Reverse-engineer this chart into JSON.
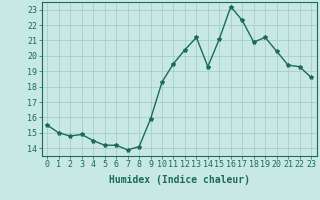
{
  "x": [
    0,
    1,
    2,
    3,
    4,
    5,
    6,
    7,
    8,
    9,
    10,
    11,
    12,
    13,
    14,
    15,
    16,
    17,
    18,
    19,
    20,
    21,
    22,
    23
  ],
  "y": [
    15.5,
    15.0,
    14.8,
    14.9,
    14.5,
    14.2,
    14.2,
    13.9,
    14.1,
    15.9,
    18.3,
    19.5,
    20.4,
    21.2,
    19.3,
    21.1,
    23.2,
    22.3,
    20.9,
    21.2,
    20.3,
    19.4,
    19.3,
    18.6
  ],
  "line_color": "#1a6b5a",
  "marker": "*",
  "marker_size": 3,
  "bg_color": "#c8e8e5",
  "grid_color": "#a0c8c4",
  "xlabel": "Humidex (Indice chaleur)",
  "ylim": [
    13.5,
    23.5
  ],
  "xlim": [
    -0.5,
    23.5
  ],
  "yticks": [
    14,
    15,
    16,
    17,
    18,
    19,
    20,
    21,
    22,
    23
  ],
  "xticks": [
    0,
    1,
    2,
    3,
    4,
    5,
    6,
    7,
    8,
    9,
    10,
    11,
    12,
    13,
    14,
    15,
    16,
    17,
    18,
    19,
    20,
    21,
    22,
    23
  ],
  "axis_color": "#1a6b5a",
  "tick_color": "#1a6b5a",
  "label_color": "#1a6b5a",
  "font_size": 6.0,
  "xlabel_fontsize": 7.0,
  "linewidth": 1.0
}
